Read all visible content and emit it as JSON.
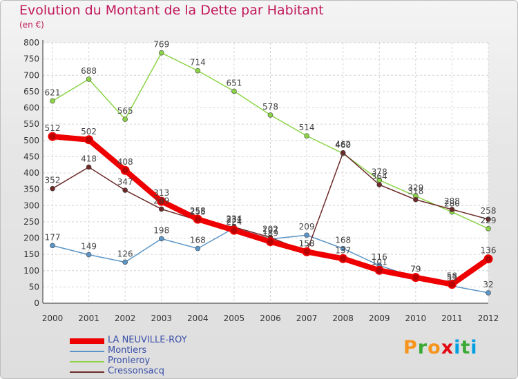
{
  "header": {
    "title": "Evolution du Montant de la Dette par Habitant",
    "subtitle": "(en €)"
  },
  "brand": {
    "letters": [
      "P",
      "r",
      "o",
      "x",
      "i",
      "t",
      "i"
    ],
    "colors": [
      "#f7941d",
      "#3aaa35",
      "#f7941d",
      "#e30613",
      "#00a0e3",
      "#3aaa35",
      "#00a0e3"
    ]
  },
  "colors": {
    "title": "#c2185b",
    "legend_text": "#3a4fa8",
    "background": "#e6e6e6"
  },
  "chart_data": {
    "type": "line",
    "x": [
      "2000",
      "2001",
      "2002",
      "2003",
      "2004",
      "2005",
      "2006",
      "2007",
      "2008",
      "2009",
      "2010",
      "2011",
      "2012"
    ],
    "ylim": [
      0,
      800
    ],
    "yticks": [
      "0",
      "50",
      "100",
      "150",
      "200",
      "250",
      "300",
      "350",
      "400",
      "450",
      "500",
      "550",
      "600",
      "650",
      "700",
      "750",
      "800"
    ],
    "grid": true,
    "legend_position": "bottom-left",
    "series": [
      {
        "name": "LA NEUVILLE-ROY",
        "color": "#ee0000",
        "values": [
          512,
          502,
          408,
          313,
          258,
          224,
          189,
          158,
          137,
          101,
          79,
          58,
          136
        ]
      },
      {
        "name": "Montiers",
        "color": "#5b95c7",
        "values": [
          177,
          149,
          126,
          198,
          168,
          231,
          197,
          209,
          168,
          116,
          79,
          53,
          32
        ]
      },
      {
        "name": "Pronleroy",
        "color": "#8cd446",
        "values": [
          621,
          688,
          565,
          769,
          714,
          651,
          578,
          514,
          460,
          378,
          329,
          280,
          229
        ]
      },
      {
        "name": "Cressonsacq",
        "color": "#6d2a2a",
        "values": [
          352,
          418,
          347,
          289,
          255,
          234,
          202,
          158,
          462,
          364,
          318,
          288,
          258
        ]
      }
    ]
  }
}
